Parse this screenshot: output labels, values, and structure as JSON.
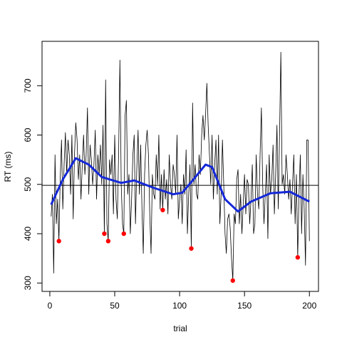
{
  "chart_data": {
    "type": "line",
    "xlabel": "trial",
    "ylabel": "RT (ms)",
    "xlim": [
      -6,
      207
    ],
    "ylim": [
      283,
      790
    ],
    "xticks": [
      0,
      50,
      100,
      150,
      200
    ],
    "yticks": [
      300,
      400,
      500,
      600,
      700
    ],
    "hline": 498,
    "series": [
      {
        "color": "#000000",
        "style": "line",
        "width": 0.8,
        "x": [
          1,
          2,
          3,
          4,
          5,
          6,
          7,
          8,
          9,
          10,
          11,
          12,
          13,
          14,
          15,
          16,
          17,
          18,
          19,
          20,
          21,
          22,
          23,
          24,
          25,
          26,
          27,
          28,
          29,
          30,
          31,
          32,
          33,
          34,
          35,
          36,
          37,
          38,
          39,
          40,
          41,
          42,
          43,
          44,
          45,
          46,
          47,
          48,
          49,
          50,
          51,
          52,
          53,
          54,
          55,
          56,
          57,
          58,
          59,
          60,
          61,
          62,
          63,
          64,
          65,
          66,
          67,
          68,
          69,
          70,
          71,
          72,
          73,
          74,
          75,
          76,
          77,
          78,
          79,
          80,
          81,
          82,
          83,
          84,
          85,
          86,
          87,
          88,
          89,
          90,
          91,
          92,
          93,
          94,
          95,
          96,
          97,
          98,
          99,
          100,
          101,
          102,
          103,
          104,
          105,
          106,
          107,
          108,
          109,
          110,
          111,
          112,
          113,
          114,
          115,
          116,
          117,
          118,
          119,
          120,
          121,
          122,
          123,
          124,
          125,
          126,
          127,
          128,
          129,
          130,
          131,
          132,
          133,
          134,
          135,
          136,
          137,
          138,
          139,
          140,
          141,
          142,
          143,
          144,
          145,
          146,
          147,
          148,
          149,
          150,
          151,
          152,
          153,
          154,
          155,
          156,
          157,
          158,
          159,
          160,
          161,
          162,
          163,
          164,
          165,
          166,
          167,
          168,
          169,
          170,
          171,
          172,
          173,
          174,
          175,
          176,
          177,
          178,
          179,
          180,
          181,
          182,
          183,
          184,
          185,
          186,
          187,
          188,
          189,
          190,
          191,
          192,
          193,
          194,
          195,
          196,
          197,
          198,
          199,
          200
        ],
        "values": [
          435,
          480,
          320,
          560,
          420,
          470,
          385,
          510,
          590,
          450,
          540,
          605,
          520,
          590,
          560,
          480,
          600,
          430,
          560,
          625,
          590,
          510,
          560,
          470,
          540,
          600,
          520,
          560,
          655,
          480,
          580,
          550,
          500,
          540,
          610,
          470,
          560,
          520,
          580,
          500,
          620,
          400,
          712,
          420,
          385,
          550,
          520,
          560,
          440,
          600,
          470,
          430,
          560,
          752,
          500,
          420,
          400,
          640,
          670,
          480,
          520,
          400,
          470,
          560,
          600,
          420,
          530,
          610,
          480,
          580,
          450,
          360,
          520,
          580,
          610,
          560,
          440,
          360,
          520,
          480,
          470,
          560,
          500,
          600,
          450,
          520,
          448,
          530,
          470,
          510,
          440,
          560,
          500,
          470,
          540,
          520,
          480,
          600,
          430,
          470,
          500,
          420,
          520,
          480,
          570,
          400,
          480,
          540,
          370,
          665,
          500,
          540,
          480,
          470,
          560,
          520,
          600,
          640,
          590,
          640,
          705,
          620,
          560,
          500,
          600,
          470,
          540,
          590,
          480,
          600,
          420,
          480,
          590,
          500,
          400,
          360,
          430,
          440,
          410,
          350,
          305,
          440,
          420,
          510,
          530,
          420,
          480,
          400,
          460,
          520,
          440,
          510,
          500,
          420,
          470,
          540,
          400,
          420,
          560,
          480,
          450,
          560,
          655,
          500,
          420,
          480,
          540,
          390,
          560,
          480,
          510,
          580,
          440,
          520,
          620,
          450,
          600,
          768,
          500,
          520,
          480,
          560,
          520,
          470,
          510,
          440,
          500,
          560,
          420,
          520,
          352,
          480,
          560,
          400,
          520,
          450,
          336,
          590,
          590,
          385
        ]
      },
      {
        "color": "#1428d8",
        "style": "line",
        "width": 3,
        "x": [
          1,
          10,
          20,
          30,
          40,
          55,
          65,
          80,
          95,
          102,
          110,
          120,
          125,
          135,
          145,
          155,
          170,
          185,
          200
        ],
        "values": [
          459,
          510,
          553,
          540,
          515,
          503,
          508,
          493,
          480,
          483,
          508,
          540,
          535,
          470,
          445,
          465,
          482,
          485,
          465
        ]
      },
      {
        "color": "#ff0000",
        "style": "points",
        "x": [
          7,
          42,
          45,
          57,
          87,
          109,
          141,
          191
        ],
        "values": [
          385,
          400,
          385,
          400,
          448,
          370,
          305,
          352
        ]
      }
    ]
  }
}
